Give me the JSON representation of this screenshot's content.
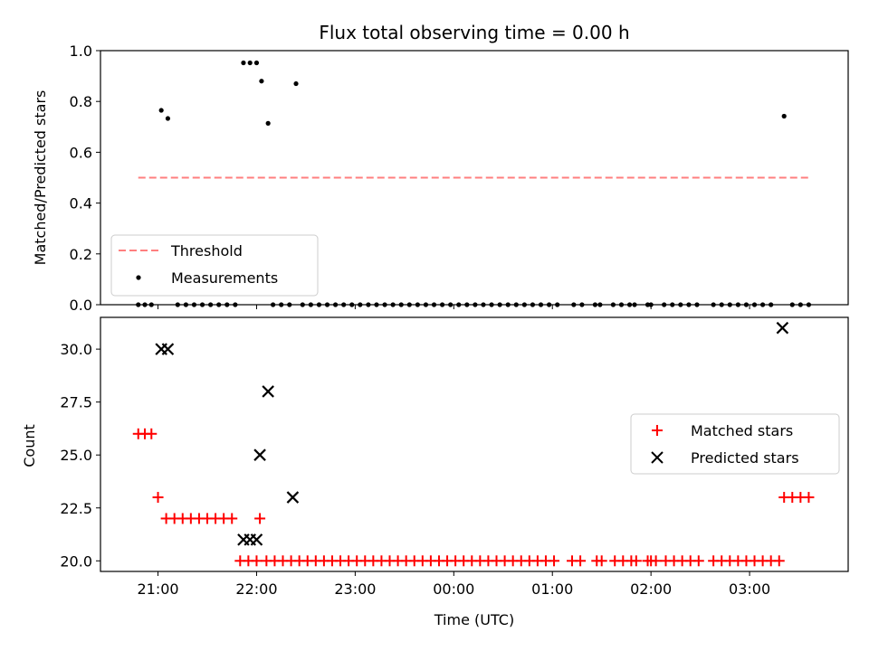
{
  "chart_data": [
    {
      "type": "scatter",
      "title": "Flux total observing time = 0.00 h",
      "ylabel": "Matched/Predicted stars",
      "xlabel": "",
      "ylim": [
        0,
        1.0
      ],
      "yticks": [
        "0.0",
        "0.2",
        "0.4",
        "0.6",
        "0.8",
        "1.0"
      ],
      "legend_position": "lower-left",
      "threshold": {
        "name": "Threshold",
        "value": 0.5,
        "x_start": "20:48",
        "x_end": "03:36",
        "color": "#ff7f7f",
        "style": "dashed"
      },
      "series": [
        {
          "name": "Measurements",
          "color": "#000000",
          "marker": "dot",
          "points": [
            [
              "20:48",
              0.0
            ],
            [
              "20:52",
              0.0
            ],
            [
              "20:56",
              0.0
            ],
            [
              "21:02",
              0.765
            ],
            [
              "21:06",
              0.733
            ],
            [
              "21:12",
              0.0
            ],
            [
              "21:17",
              0.0
            ],
            [
              "21:22",
              0.0
            ],
            [
              "21:27",
              0.0
            ],
            [
              "21:32",
              0.0
            ],
            [
              "21:37",
              0.0
            ],
            [
              "21:42",
              0.0
            ],
            [
              "21:47",
              0.0
            ],
            [
              "21:52",
              0.952
            ],
            [
              "21:56",
              0.952
            ],
            [
              "22:00",
              0.952
            ],
            [
              "22:03",
              0.88
            ],
            [
              "22:07",
              0.714
            ],
            [
              "22:10",
              0.0
            ],
            [
              "22:15",
              0.0
            ],
            [
              "22:20",
              0.0
            ],
            [
              "22:24",
              0.87
            ],
            [
              "22:28",
              0.0
            ],
            [
              "22:33",
              0.0
            ],
            [
              "22:38",
              0.0
            ],
            [
              "22:43",
              0.0
            ],
            [
              "22:48",
              0.0
            ],
            [
              "22:53",
              0.0
            ],
            [
              "22:58",
              0.0
            ],
            [
              "23:03",
              0.0
            ],
            [
              "23:08",
              0.0
            ],
            [
              "23:13",
              0.0
            ],
            [
              "23:18",
              0.0
            ],
            [
              "23:23",
              0.0
            ],
            [
              "23:28",
              0.0
            ],
            [
              "23:33",
              0.0
            ],
            [
              "23:38",
              0.0
            ],
            [
              "23:43",
              0.0
            ],
            [
              "23:48",
              0.0
            ],
            [
              "23:53",
              0.0
            ],
            [
              "23:58",
              0.0
            ],
            [
              "00:03",
              0.0
            ],
            [
              "00:08",
              0.0
            ],
            [
              "00:13",
              0.0
            ],
            [
              "00:18",
              0.0
            ],
            [
              "00:23",
              0.0
            ],
            [
              "00:28",
              0.0
            ],
            [
              "00:33",
              0.0
            ],
            [
              "00:38",
              0.0
            ],
            [
              "00:43",
              0.0
            ],
            [
              "00:48",
              0.0
            ],
            [
              "00:53",
              0.0
            ],
            [
              "00:58",
              0.0
            ],
            [
              "01:03",
              0.0
            ],
            [
              "01:13",
              0.0
            ],
            [
              "01:18",
              0.0
            ],
            [
              "01:26",
              0.0
            ],
            [
              "01:29",
              0.0
            ],
            [
              "01:37",
              0.0
            ],
            [
              "01:42",
              0.0
            ],
            [
              "01:47",
              0.0
            ],
            [
              "01:50",
              0.0
            ],
            [
              "01:58",
              0.0
            ],
            [
              "02:00",
              0.0
            ],
            [
              "02:08",
              0.0
            ],
            [
              "02:13",
              0.0
            ],
            [
              "02:18",
              0.0
            ],
            [
              "02:23",
              0.0
            ],
            [
              "02:28",
              0.0
            ],
            [
              "02:38",
              0.0
            ],
            [
              "02:43",
              0.0
            ],
            [
              "02:48",
              0.0
            ],
            [
              "02:53",
              0.0
            ],
            [
              "02:58",
              0.0
            ],
            [
              "03:03",
              0.0
            ],
            [
              "03:08",
              0.0
            ],
            [
              "03:13",
              0.0
            ],
            [
              "03:21",
              0.742
            ],
            [
              "03:26",
              0.0
            ],
            [
              "03:31",
              0.0
            ],
            [
              "03:36",
              0.0
            ]
          ]
        }
      ]
    },
    {
      "type": "scatter",
      "title": "",
      "xlabel": "Time (UTC)",
      "ylabel": "Count",
      "ylim": [
        19.5,
        31.5
      ],
      "yticks": [
        "20.0",
        "22.5",
        "25.0",
        "27.5",
        "30.0"
      ],
      "xticks": [
        "21:00",
        "22:00",
        "23:00",
        "00:00",
        "01:00",
        "02:00",
        "03:00"
      ],
      "legend_position": "center-right",
      "series": [
        {
          "name": "Matched stars",
          "color": "#ff0000",
          "marker": "plus",
          "points": [
            [
              "20:48",
              26
            ],
            [
              "20:52",
              26
            ],
            [
              "20:56",
              26
            ],
            [
              "21:00",
              23
            ],
            [
              "21:05",
              22
            ],
            [
              "21:10",
              22
            ],
            [
              "21:15",
              22
            ],
            [
              "21:20",
              22
            ],
            [
              "21:25",
              22
            ],
            [
              "21:30",
              22
            ],
            [
              "21:35",
              22
            ],
            [
              "21:40",
              22
            ],
            [
              "21:45",
              22
            ],
            [
              "21:50",
              20
            ],
            [
              "21:55",
              20
            ],
            [
              "22:00",
              20
            ],
            [
              "22:02",
              22
            ],
            [
              "22:06",
              20
            ],
            [
              "22:11",
              20
            ],
            [
              "22:16",
              20
            ],
            [
              "22:21",
              20
            ],
            [
              "22:26",
              20
            ],
            [
              "22:31",
              20
            ],
            [
              "22:36",
              20
            ],
            [
              "22:41",
              20
            ],
            [
              "22:46",
              20
            ],
            [
              "22:51",
              20
            ],
            [
              "22:56",
              20
            ],
            [
              "23:01",
              20
            ],
            [
              "23:06",
              20
            ],
            [
              "23:11",
              20
            ],
            [
              "23:16",
              20
            ],
            [
              "23:21",
              20
            ],
            [
              "23:26",
              20
            ],
            [
              "23:31",
              20
            ],
            [
              "23:36",
              20
            ],
            [
              "23:41",
              20
            ],
            [
              "23:46",
              20
            ],
            [
              "23:51",
              20
            ],
            [
              "23:56",
              20
            ],
            [
              "00:01",
              20
            ],
            [
              "00:06",
              20
            ],
            [
              "00:11",
              20
            ],
            [
              "00:16",
              20
            ],
            [
              "00:21",
              20
            ],
            [
              "00:26",
              20
            ],
            [
              "00:31",
              20
            ],
            [
              "00:36",
              20
            ],
            [
              "00:41",
              20
            ],
            [
              "00:46",
              20
            ],
            [
              "00:51",
              20
            ],
            [
              "00:56",
              20
            ],
            [
              "01:01",
              20
            ],
            [
              "01:12",
              20
            ],
            [
              "01:17",
              20
            ],
            [
              "01:27",
              20
            ],
            [
              "01:30",
              20
            ],
            [
              "01:38",
              20
            ],
            [
              "01:43",
              20
            ],
            [
              "01:48",
              20
            ],
            [
              "01:51",
              20
            ],
            [
              "01:58",
              20
            ],
            [
              "02:00",
              20
            ],
            [
              "02:03",
              20
            ],
            [
              "02:09",
              20
            ],
            [
              "02:14",
              20
            ],
            [
              "02:19",
              20
            ],
            [
              "02:24",
              20
            ],
            [
              "02:29",
              20
            ],
            [
              "02:38",
              20
            ],
            [
              "02:43",
              20
            ],
            [
              "02:48",
              20
            ],
            [
              "02:53",
              20
            ],
            [
              "02:58",
              20
            ],
            [
              "03:03",
              20
            ],
            [
              "03:08",
              20
            ],
            [
              "03:13",
              20
            ],
            [
              "03:18",
              20
            ],
            [
              "03:21",
              23
            ],
            [
              "03:26",
              23
            ],
            [
              "03:31",
              23
            ],
            [
              "03:36",
              23
            ]
          ]
        },
        {
          "name": "Predicted stars",
          "color": "#000000",
          "marker": "x",
          "points": [
            [
              "21:02",
              30
            ],
            [
              "21:06",
              30
            ],
            [
              "21:52",
              21
            ],
            [
              "21:56",
              21
            ],
            [
              "22:00",
              21
            ],
            [
              "22:02",
              25
            ],
            [
              "22:07",
              28
            ],
            [
              "22:22",
              23
            ],
            [
              "03:20",
              31
            ]
          ]
        }
      ]
    }
  ]
}
